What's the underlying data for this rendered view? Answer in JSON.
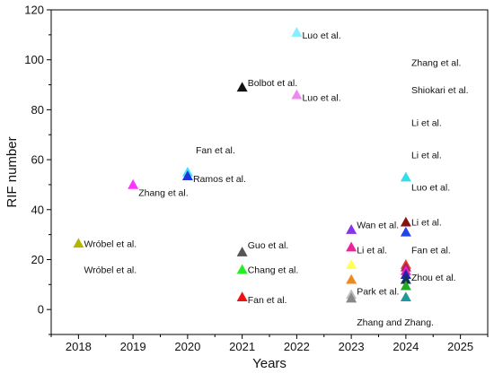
{
  "chart_data": {
    "type": "scatter",
    "marker": "triangle",
    "xlabel": "Years",
    "ylabel": "RIF number",
    "xlim": [
      2017.5,
      2025.5
    ],
    "ylim": [
      -10,
      120
    ],
    "xticks": [
      "2018",
      "2019",
      "2020",
      "2021",
      "2022",
      "2023",
      "2024",
      "2025"
    ],
    "yticks": [
      "0",
      "20",
      "40",
      "60",
      "80",
      "100",
      "120"
    ],
    "grid": false,
    "legend": "none",
    "points": [
      {
        "x": 2018,
        "y": 26.5,
        "color": "#b5b500"
      },
      {
        "x": 2019,
        "y": 50,
        "color": "#ff33ff"
      },
      {
        "x": 2020,
        "y": 55,
        "color": "#33e6ff"
      },
      {
        "x": 2020,
        "y": 53.5,
        "color": "#2233dd"
      },
      {
        "x": 2021,
        "y": 89,
        "color": "#111111"
      },
      {
        "x": 2021,
        "y": 23,
        "color": "#555555"
      },
      {
        "x": 2021,
        "y": 16,
        "color": "#22ee22"
      },
      {
        "x": 2021,
        "y": 5,
        "color": "#ee1111"
      },
      {
        "x": 2022,
        "y": 111,
        "color": "#88eeff"
      },
      {
        "x": 2022,
        "y": 86,
        "color": "#ee88ee"
      },
      {
        "x": 2023,
        "y": 32,
        "color": "#8833ee"
      },
      {
        "x": 2023,
        "y": 25,
        "color": "#ee2299"
      },
      {
        "x": 2023,
        "y": 18,
        "color": "#ffff55"
      },
      {
        "x": 2023,
        "y": 12,
        "color": "#ee8822"
      },
      {
        "x": 2023,
        "y": 6,
        "color": "#bbbbbb"
      },
      {
        "x": 2023,
        "y": 4.5,
        "color": "#888888"
      },
      {
        "x": 2024,
        "y": 53,
        "color": "#33ddee"
      },
      {
        "x": 2024,
        "y": 35,
        "color": "#881111"
      },
      {
        "x": 2024,
        "y": 31,
        "color": "#2244ee"
      },
      {
        "x": 2024,
        "y": 18,
        "color": "#ee4422"
      },
      {
        "x": 2024,
        "y": 17,
        "color": "#aa2266"
      },
      {
        "x": 2024,
        "y": 15.5,
        "color": "#ee22bb"
      },
      {
        "x": 2024,
        "y": 14,
        "color": "#2222aa"
      },
      {
        "x": 2024,
        "y": 12,
        "color": "#113355"
      },
      {
        "x": 2024,
        "y": 9.5,
        "color": "#22aa22"
      },
      {
        "x": 2024,
        "y": 5,
        "color": "#229999"
      }
    ],
    "labels": [
      {
        "text": "Wróbel et al.",
        "x": 2018.1,
        "y": 26.5
      },
      {
        "text": "Wróbel et al.",
        "x": 2018.1,
        "y": 16
      },
      {
        "text": "Zhang et al.",
        "x": 2019.1,
        "y": 47
      },
      {
        "text": "Fan et al.",
        "x": 2020.15,
        "y": 64
      },
      {
        "text": "Ramos et al.",
        "x": 2020.1,
        "y": 52.5
      },
      {
        "text": "Bolbot et al.",
        "x": 2021.1,
        "y": 91
      },
      {
        "text": "Guo et al.",
        "x": 2021.1,
        "y": 26
      },
      {
        "text": "Chang et al.",
        "x": 2021.1,
        "y": 16
      },
      {
        "text": "Fan et al.",
        "x": 2021.1,
        "y": 4
      },
      {
        "text": "Luo et al.",
        "x": 2022.1,
        "y": 110
      },
      {
        "text": "Luo et al.",
        "x": 2022.1,
        "y": 85
      },
      {
        "text": "Wan et al.",
        "x": 2023.1,
        "y": 34
      },
      {
        "text": "Li et al.",
        "x": 2023.1,
        "y": 24
      },
      {
        "text": "Park et al.",
        "x": 2023.1,
        "y": 7.5
      },
      {
        "text": "Zhang and Zhang.",
        "x": 2023.1,
        "y": -5
      },
      {
        "text": "Zhang et al.",
        "x": 2024.1,
        "y": 99
      },
      {
        "text": "Shiokari et al.",
        "x": 2024.1,
        "y": 88
      },
      {
        "text": "Li et al.",
        "x": 2024.1,
        "y": 75
      },
      {
        "text": "Li et al.",
        "x": 2024.1,
        "y": 62
      },
      {
        "text": "Luo et al.",
        "x": 2024.1,
        "y": 49
      },
      {
        "text": "Li et al.",
        "x": 2024.1,
        "y": 35
      },
      {
        "text": "Fan et al.",
        "x": 2024.1,
        "y": 24
      },
      {
        "text": "Zhou et al.",
        "x": 2024.1,
        "y": 13
      }
    ]
  }
}
